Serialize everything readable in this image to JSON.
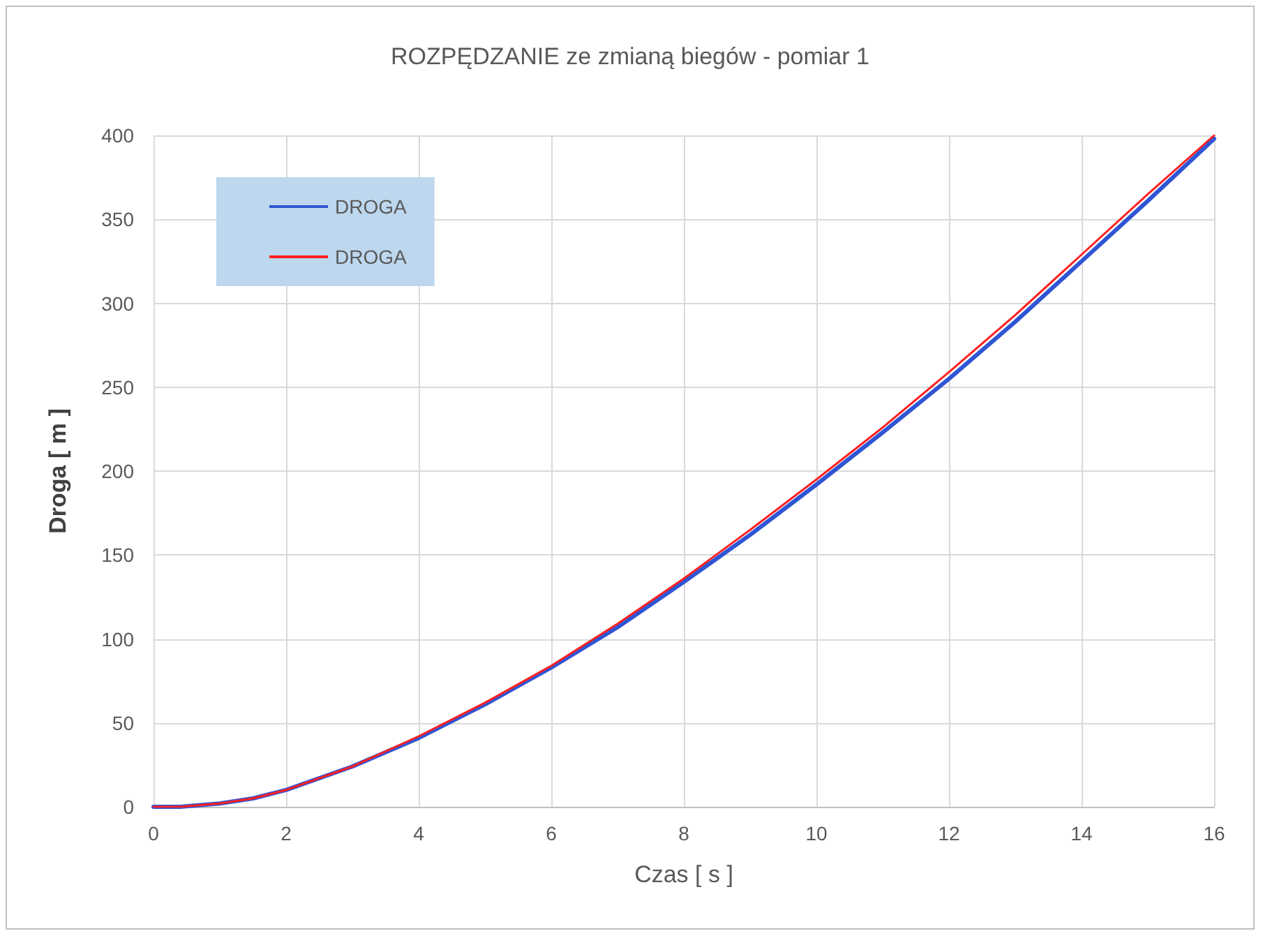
{
  "chart_data": {
    "type": "line",
    "title": "ROZPĘDZANIE ze zmianą biegów - pomiar 1",
    "xlabel": "Czas [ s ]",
    "ylabel": "Droga [ m ]",
    "x": [
      0,
      0.4,
      1,
      1.5,
      2,
      3,
      4,
      5,
      6,
      7,
      8,
      9,
      10,
      11,
      12,
      13,
      14,
      15,
      16
    ],
    "series": [
      {
        "name": "DROGA",
        "color": "#2f55d4",
        "values": [
          0,
          0,
          2,
          5,
          10,
          24,
          41,
          61,
          83,
          107,
          134,
          162,
          192,
          223,
          255,
          289,
          325,
          361,
          398
        ]
      },
      {
        "name": "DROGA",
        "color": "#ff2020",
        "values": [
          0,
          0,
          2,
          5,
          10,
          24,
          42,
          62,
          84,
          109,
          136,
          165,
          195,
          226,
          259,
          293,
          329,
          365,
          400
        ]
      }
    ],
    "xlim": [
      0,
      16
    ],
    "xticks": [
      0,
      2,
      4,
      6,
      8,
      10,
      12,
      14,
      16
    ],
    "ylim": [
      0,
      400
    ],
    "yticks": [
      0,
      50,
      100,
      150,
      200,
      250,
      300,
      350,
      400
    ],
    "grid": true,
    "legend": "top left",
    "marker": "none",
    "line_style": "solid"
  }
}
